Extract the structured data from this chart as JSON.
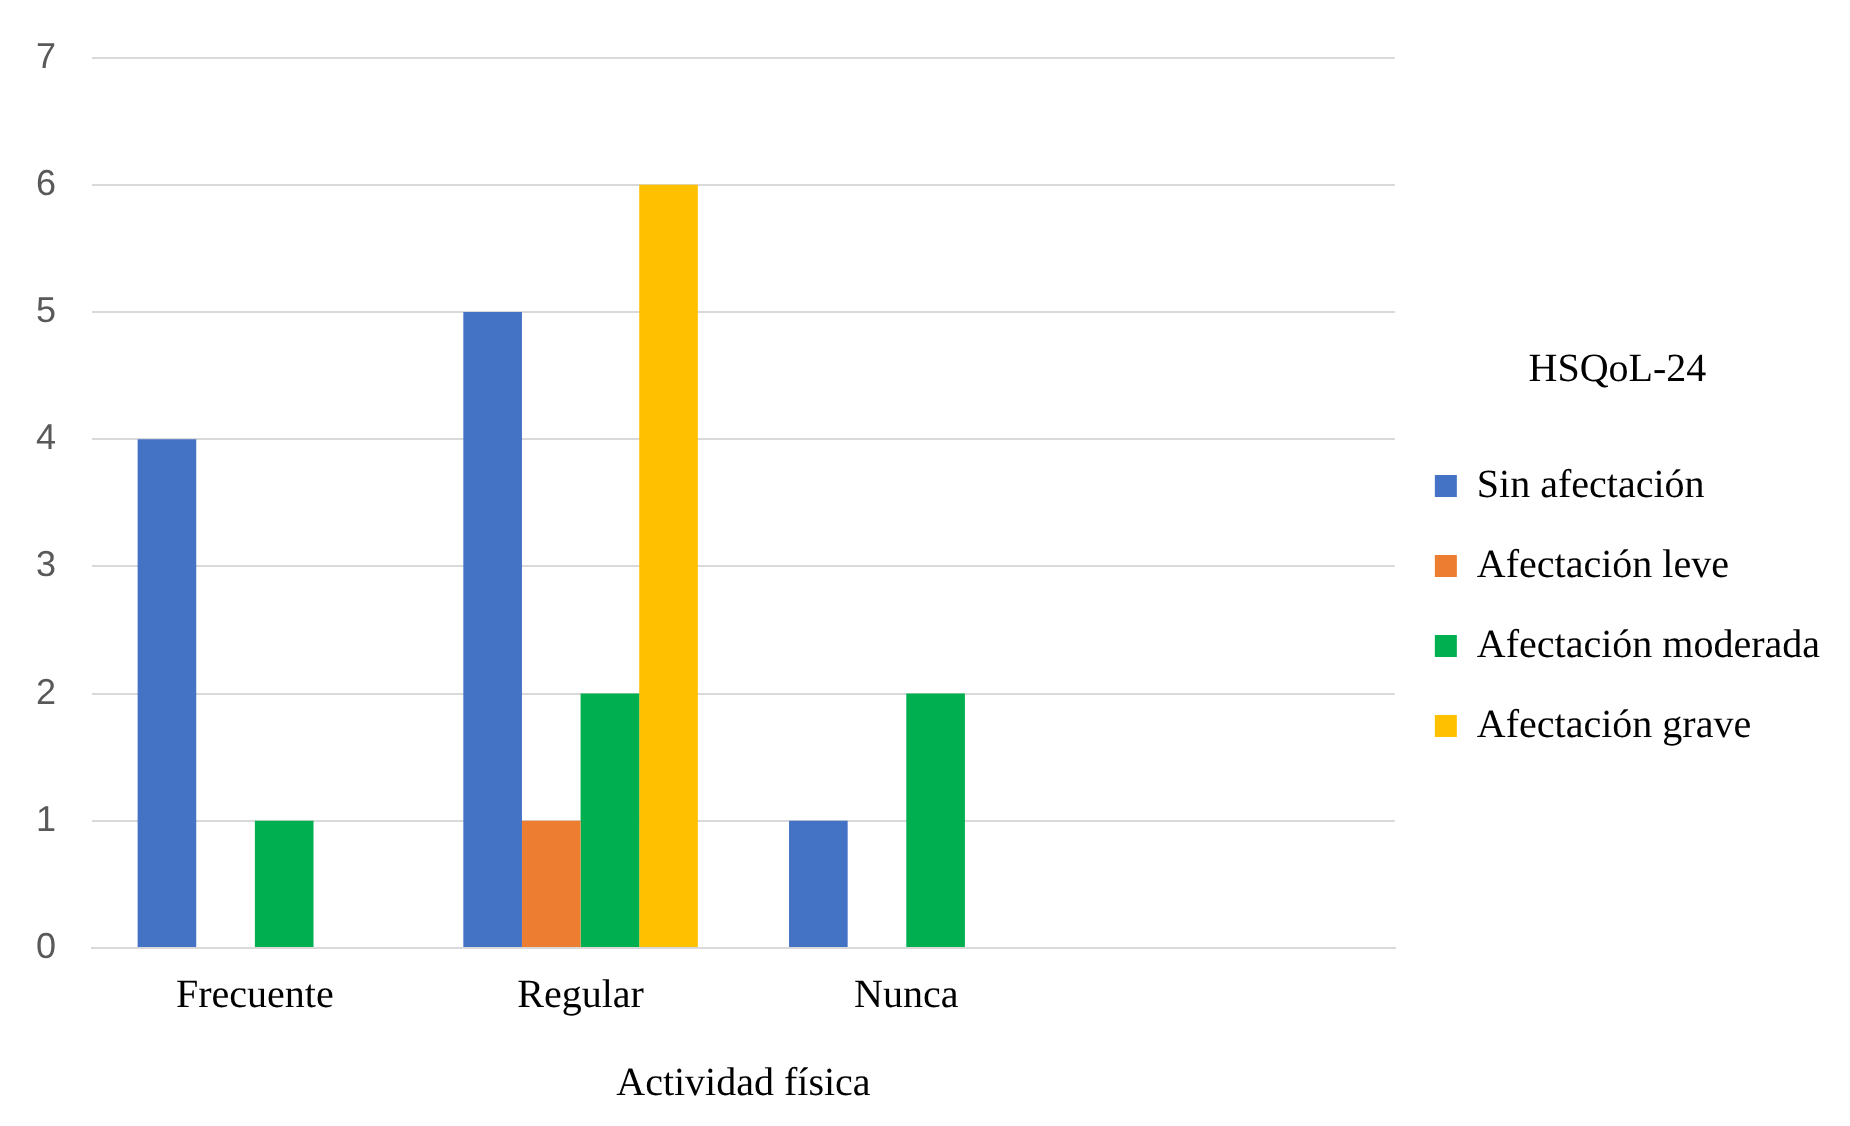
{
  "chart_data": {
    "type": "bar",
    "xlabel": "Actividad física",
    "legend_title": "HSQoL-24",
    "categories": [
      "Frecuente",
      "Regular",
      "Nunca",
      null
    ],
    "series": [
      {
        "name": "Sin afectación",
        "color": "#4472c4",
        "values": [
          4,
          5,
          1,
          null
        ]
      },
      {
        "name": "Afectación leve",
        "color": "#ed7d31",
        "values": [
          0,
          1,
          0,
          null
        ]
      },
      {
        "name": "Afectación moderada",
        "color": "#00b050",
        "values": [
          1,
          2,
          2,
          null
        ]
      },
      {
        "name": "Afectación grave",
        "color": "#ffc000",
        "values": [
          0,
          6,
          0,
          null
        ]
      }
    ],
    "ylim": [
      0,
      7
    ],
    "yticks": [
      0,
      1,
      2,
      3,
      4,
      5,
      6,
      7
    ],
    "grid": "y",
    "legend": "right"
  }
}
